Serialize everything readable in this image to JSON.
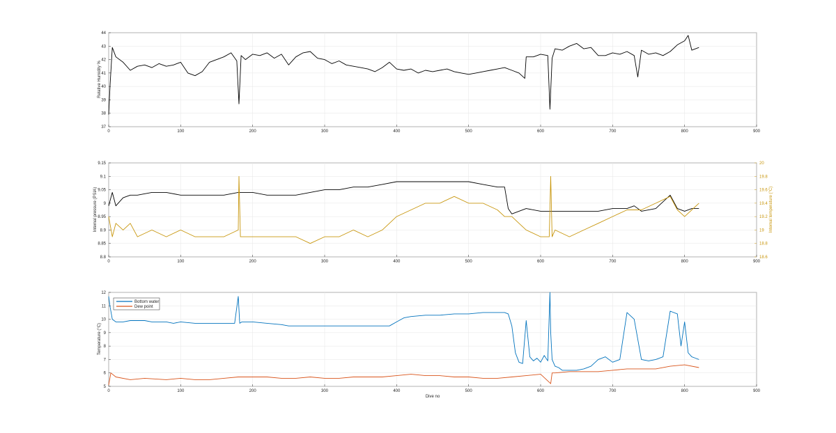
{
  "chart_data": [
    {
      "type": "line",
      "ylabel": "Relative Humidity %",
      "xlabel": "",
      "xlim": [
        0,
        900
      ],
      "ylim": [
        37,
        44
      ],
      "xticks": [
        "0",
        "100",
        "200",
        "300",
        "400",
        "500",
        "600",
        "700",
        "800",
        "900"
      ],
      "yticks": [
        "37",
        "38",
        "39",
        "40",
        "41",
        "42",
        "43",
        "44"
      ],
      "grid": true,
      "series": [
        {
          "color": "#000000",
          "x": [
            0,
            2,
            5,
            10,
            20,
            30,
            40,
            50,
            60,
            70,
            80,
            90,
            100,
            110,
            120,
            130,
            140,
            150,
            160,
            170,
            178,
            181,
            184,
            190,
            200,
            210,
            220,
            230,
            240,
            250,
            260,
            270,
            280,
            290,
            300,
            310,
            320,
            330,
            340,
            350,
            360,
            370,
            380,
            390,
            400,
            410,
            420,
            430,
            440,
            450,
            460,
            470,
            480,
            490,
            500,
            510,
            520,
            530,
            540,
            550,
            560,
            570,
            578,
            580,
            590,
            600,
            610,
            613,
            616,
            620,
            630,
            640,
            650,
            660,
            670,
            680,
            690,
            700,
            710,
            720,
            730,
            735,
            740,
            750,
            760,
            770,
            780,
            790,
            800,
            805,
            810,
            820
          ],
          "values": [
            37.9,
            40.2,
            42.9,
            42.2,
            41.8,
            41.2,
            41.5,
            41.6,
            41.4,
            41.7,
            41.5,
            41.6,
            41.8,
            41.0,
            40.8,
            41.1,
            41.8,
            42.0,
            42.2,
            42.5,
            41.9,
            38.7,
            42.3,
            42.0,
            42.4,
            42.3,
            42.5,
            42.1,
            42.4,
            41.6,
            42.2,
            42.5,
            42.6,
            42.1,
            42.0,
            41.7,
            41.9,
            41.6,
            41.5,
            41.4,
            41.3,
            41.1,
            41.4,
            41.8,
            41.3,
            41.2,
            41.3,
            41.0,
            41.2,
            41.1,
            41.2,
            41.3,
            41.1,
            41.0,
            40.9,
            41.0,
            41.1,
            41.2,
            41.3,
            41.4,
            41.2,
            41.0,
            40.6,
            42.2,
            42.2,
            42.4,
            42.3,
            38.3,
            42.1,
            42.8,
            42.7,
            43.0,
            43.2,
            42.8,
            42.9,
            42.3,
            42.3,
            42.5,
            42.4,
            42.6,
            42.3,
            40.7,
            42.7,
            42.4,
            42.5,
            42.3,
            42.6,
            43.1,
            43.4,
            43.8,
            42.7,
            42.9
          ]
        }
      ]
    },
    {
      "type": "line",
      "ylabel": "Internal pressure (PSIA)",
      "y2label": "Internal temperature (°C)",
      "xlabel": "",
      "xlim": [
        0,
        900
      ],
      "ylim": [
        8.8,
        9.15
      ],
      "y2lim": [
        18.6,
        20
      ],
      "xticks": [
        "0",
        "100",
        "200",
        "300",
        "400",
        "500",
        "600",
        "700",
        "800",
        "900"
      ],
      "yticks": [
        "8.8",
        "8.85",
        "8.9",
        "8.95",
        "9",
        "9.05",
        "9.1",
        "9.15"
      ],
      "y2ticks": [
        "18.6",
        "18.8",
        "19",
        "19.2",
        "19.4",
        "19.6",
        "19.8",
        "20"
      ],
      "grid": true,
      "series": [
        {
          "axis": "left",
          "color": "#000000",
          "x": [
            0,
            5,
            10,
            20,
            30,
            40,
            60,
            80,
            100,
            120,
            140,
            160,
            180,
            200,
            220,
            240,
            260,
            280,
            300,
            320,
            340,
            360,
            380,
            400,
            420,
            440,
            460,
            480,
            500,
            520,
            540,
            550,
            555,
            560,
            570,
            580,
            600,
            620,
            640,
            660,
            680,
            700,
            720,
            730,
            740,
            760,
            780,
            790,
            800,
            810,
            820
          ],
          "values": [
            8.99,
            9.04,
            8.99,
            9.02,
            9.03,
            9.03,
            9.04,
            9.04,
            9.03,
            9.03,
            9.03,
            9.03,
            9.04,
            9.04,
            9.03,
            9.03,
            9.03,
            9.04,
            9.05,
            9.05,
            9.06,
            9.06,
            9.07,
            9.08,
            9.08,
            9.08,
            9.08,
            9.08,
            9.08,
            9.07,
            9.06,
            9.06,
            8.98,
            8.96,
            8.97,
            8.98,
            8.97,
            8.97,
            8.97,
            8.97,
            8.97,
            8.98,
            8.98,
            8.99,
            8.97,
            8.98,
            9.03,
            8.98,
            8.97,
            8.98,
            8.98
          ]
        },
        {
          "axis": "right",
          "color": "#c8960c",
          "x": [
            0,
            5,
            10,
            20,
            30,
            40,
            60,
            80,
            100,
            120,
            140,
            160,
            180,
            181,
            183,
            200,
            220,
            240,
            260,
            280,
            300,
            320,
            340,
            360,
            380,
            400,
            420,
            440,
            460,
            480,
            500,
            520,
            540,
            550,
            560,
            570,
            580,
            600,
            612,
            614,
            616,
            620,
            640,
            660,
            680,
            700,
            720,
            740,
            760,
            780,
            790,
            800,
            810,
            820
          ],
          "values": [
            19.2,
            18.9,
            19.1,
            19.0,
            19.1,
            18.9,
            19.0,
            18.9,
            19.0,
            18.9,
            18.9,
            18.9,
            19.0,
            19.8,
            18.9,
            18.9,
            18.9,
            18.9,
            18.9,
            18.8,
            18.9,
            18.9,
            19.0,
            18.9,
            19.0,
            19.2,
            19.3,
            19.4,
            19.4,
            19.5,
            19.4,
            19.4,
            19.3,
            19.2,
            19.2,
            19.1,
            19.0,
            18.9,
            18.9,
            19.8,
            18.9,
            19.0,
            18.9,
            19.0,
            19.1,
            19.2,
            19.3,
            19.3,
            19.4,
            19.5,
            19.3,
            19.2,
            19.3,
            19.4
          ]
        }
      ]
    },
    {
      "type": "line",
      "ylabel": "Temperature (°C)",
      "xlabel": "Dive no",
      "xlim": [
        0,
        900
      ],
      "ylim": [
        5,
        12
      ],
      "xticks": [
        "0",
        "100",
        "200",
        "300",
        "400",
        "500",
        "600",
        "700",
        "800",
        "900"
      ],
      "yticks": [
        "5",
        "6",
        "7",
        "8",
        "9",
        "10",
        "11",
        "12"
      ],
      "grid": true,
      "legend": "top-left",
      "series": [
        {
          "name": "Bottom water",
          "color": "#0072bd",
          "x": [
            0,
            2,
            5,
            10,
            20,
            30,
            40,
            50,
            60,
            70,
            80,
            90,
            100,
            120,
            140,
            160,
            175,
            180,
            182,
            185,
            200,
            220,
            240,
            250,
            260,
            280,
            300,
            320,
            340,
            360,
            380,
            390,
            400,
            410,
            420,
            440,
            460,
            480,
            500,
            520,
            540,
            550,
            555,
            560,
            565,
            570,
            575,
            580,
            585,
            590,
            595,
            600,
            605,
            610,
            613,
            614,
            616,
            620,
            625,
            630,
            640,
            650,
            660,
            670,
            680,
            690,
            700,
            710,
            720,
            730,
            740,
            750,
            760,
            770,
            780,
            790,
            795,
            800,
            805,
            810,
            815,
            820
          ],
          "values": [
            11.7,
            10.9,
            10.0,
            9.8,
            9.8,
            9.9,
            9.9,
            9.9,
            9.8,
            9.8,
            9.8,
            9.7,
            9.8,
            9.7,
            9.7,
            9.7,
            9.7,
            11.7,
            9.7,
            9.8,
            9.8,
            9.7,
            9.6,
            9.5,
            9.5,
            9.5,
            9.5,
            9.5,
            9.5,
            9.5,
            9.5,
            9.5,
            9.8,
            10.1,
            10.2,
            10.3,
            10.3,
            10.4,
            10.4,
            10.5,
            10.5,
            10.5,
            10.4,
            9.5,
            7.5,
            6.8,
            6.7,
            9.9,
            7.2,
            6.9,
            7.1,
            6.8,
            7.3,
            6.9,
            12.0,
            9.0,
            7.0,
            6.5,
            6.4,
            6.2,
            6.2,
            6.2,
            6.3,
            6.5,
            7.0,
            7.2,
            6.8,
            7.0,
            10.5,
            10.0,
            7.0,
            6.9,
            7.0,
            7.2,
            10.6,
            10.4,
            8.0,
            9.8,
            7.5,
            7.2,
            7.1,
            7.0
          ]
        },
        {
          "name": "Dew point",
          "color": "#d95319",
          "x": [
            0,
            3,
            10,
            30,
            50,
            80,
            100,
            120,
            140,
            160,
            180,
            200,
            220,
            240,
            260,
            280,
            300,
            320,
            340,
            360,
            380,
            400,
            420,
            440,
            460,
            480,
            500,
            520,
            540,
            560,
            580,
            600,
            614,
            616,
            620,
            640,
            660,
            680,
            700,
            720,
            740,
            760,
            780,
            800,
            820
          ],
          "values": [
            5.1,
            6.0,
            5.7,
            5.5,
            5.6,
            5.5,
            5.6,
            5.5,
            5.5,
            5.6,
            5.7,
            5.7,
            5.7,
            5.6,
            5.6,
            5.7,
            5.6,
            5.6,
            5.7,
            5.7,
            5.7,
            5.8,
            5.9,
            5.8,
            5.8,
            5.7,
            5.7,
            5.6,
            5.6,
            5.7,
            5.8,
            5.9,
            5.2,
            6.0,
            6.0,
            6.1,
            6.1,
            6.1,
            6.2,
            6.3,
            6.3,
            6.3,
            6.5,
            6.6,
            6.4
          ]
        }
      ]
    }
  ]
}
